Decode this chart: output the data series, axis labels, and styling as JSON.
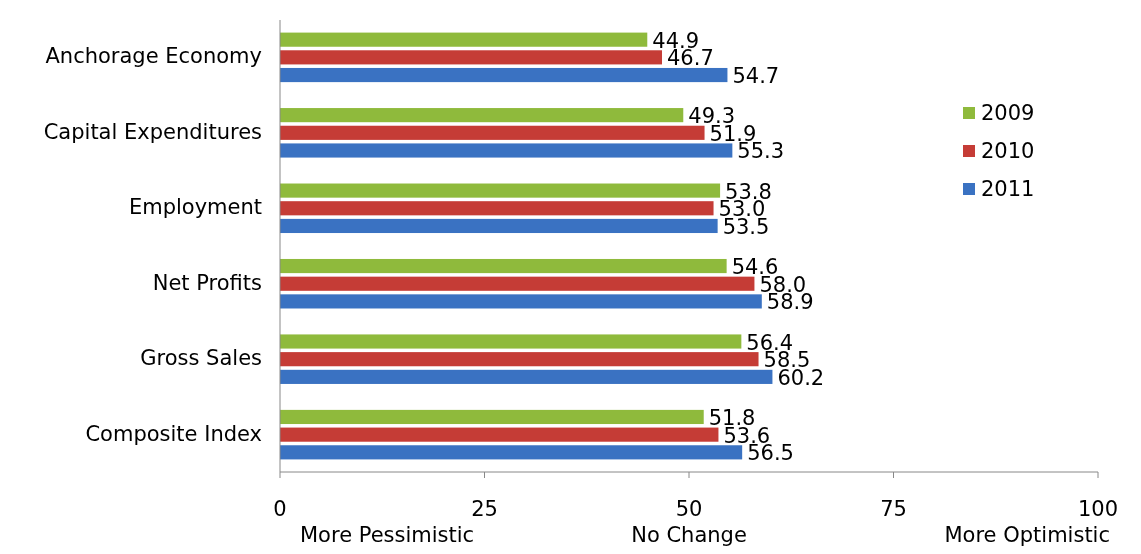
{
  "chart_data": {
    "type": "bar",
    "orientation": "horizontal",
    "categories": [
      "Anchorage Economy",
      "Capital Expenditures",
      "Employment",
      "Net Profits",
      "Gross Sales",
      "Composite Index"
    ],
    "series": [
      {
        "name": "2009",
        "color": "#8fba3c",
        "values": [
          44.9,
          49.3,
          53.8,
          54.6,
          56.4,
          51.8
        ]
      },
      {
        "name": "2010",
        "color": "#c53c36",
        "values": [
          46.7,
          51.9,
          53.0,
          58.0,
          58.5,
          53.6
        ]
      },
      {
        "name": "2011",
        "color": "#3a72c2",
        "values": [
          54.7,
          55.3,
          53.5,
          58.9,
          60.2,
          56.5
        ]
      }
    ],
    "value_labels": [
      [
        "44.9",
        "49.3",
        "53.8",
        "54.6",
        "56.4",
        "51.8"
      ],
      [
        "46.7",
        "51.9",
        "53.0",
        "58.0",
        "58.5",
        "53.6"
      ],
      [
        "54.7",
        "55.3",
        "53.5",
        "58.9",
        "60.2",
        "56.5"
      ]
    ],
    "xlim": [
      0,
      100
    ],
    "xticks": [
      0,
      25,
      50,
      75,
      100
    ],
    "legend": "right",
    "grid": false,
    "annotations": [
      "More Pessimistic",
      "No Change",
      "More Optimistic"
    ]
  }
}
